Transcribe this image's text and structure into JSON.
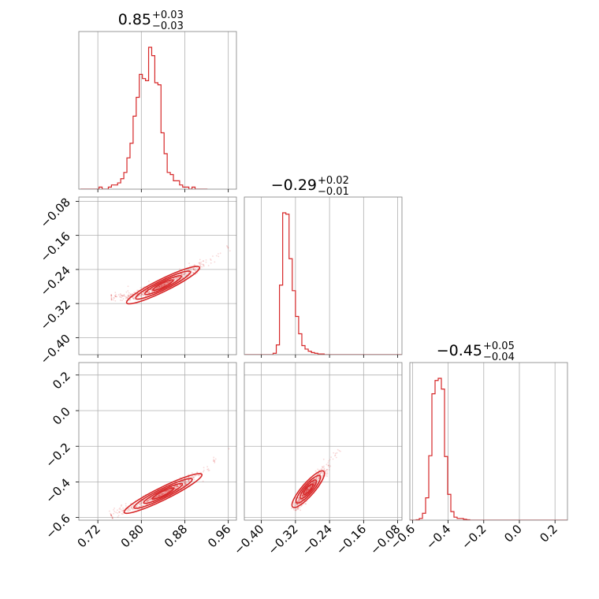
{
  "chart_data": {
    "type": "corner",
    "color": "#d62728",
    "grid": true,
    "parameters": [
      {
        "title": {
          "value": "0.85",
          "plus": "+0.03",
          "minus": "−0.03"
        },
        "range": [
          0.685,
          0.975
        ],
        "ticks": [
          0.72,
          0.8,
          0.88,
          0.96
        ],
        "tick_labels": [
          "0.72",
          "0.80",
          "0.88",
          "0.96"
        ]
      },
      {
        "title": {
          "value": "−0.29",
          "plus": "+0.02",
          "minus": "−0.01"
        },
        "range": [
          -0.44,
          -0.07
        ],
        "ticks": [
          -0.4,
          -0.32,
          -0.24,
          -0.16,
          -0.08
        ],
        "tick_labels": [
          "−0.40",
          "−0.32",
          "−0.24",
          "−0.16",
          "−0.08"
        ]
      },
      {
        "title": {
          "value": "−0.45",
          "plus": "+0.05",
          "minus": "−0.04"
        },
        "range": [
          -0.615,
          0.27
        ],
        "ticks": [
          -0.6,
          -0.4,
          -0.2,
          0.0,
          0.2
        ],
        "tick_labels": [
          "−0.6",
          "−0.4",
          "−0.2",
          "0.0",
          "0.2"
        ]
      }
    ],
    "histograms": [
      {
        "edges_start": 0.688,
        "bin_width": 0.0057,
        "counts": [
          0,
          0,
          0,
          0,
          0,
          0,
          1,
          0,
          0,
          1,
          2,
          2,
          3,
          5,
          8,
          15,
          22,
          35,
          44,
          55,
          53,
          52,
          68,
          64,
          51,
          50,
          27,
          17,
          8,
          7,
          4,
          4,
          2,
          1,
          1,
          0,
          1,
          0,
          0,
          0,
          0
        ]
      },
      {
        "edges_start": -0.44,
        "bin_width": 0.0075,
        "counts": [
          0,
          0,
          0,
          0,
          0,
          0,
          0,
          0,
          0,
          2,
          14,
          100,
          204,
          202,
          138,
          92,
          55,
          30,
          13,
          8,
          5,
          3,
          2,
          1,
          1,
          0,
          0,
          0,
          0,
          0,
          0,
          0,
          0,
          0,
          0,
          0,
          0,
          0,
          0,
          0,
          0,
          0,
          0,
          0,
          0,
          0,
          0,
          0,
          0,
          0
        ]
      },
      {
        "edges_start": -0.615,
        "bin_width": 0.0177,
        "counts": [
          0,
          0,
          1,
          4,
          16,
          52,
          150,
          294,
          325,
          330,
          305,
          148,
          60,
          20,
          7,
          4,
          4,
          2,
          1,
          0,
          0,
          0,
          0,
          0,
          0,
          0,
          0,
          0,
          0,
          0,
          0,
          0,
          0,
          0,
          0,
          0,
          0,
          0,
          0,
          0,
          0,
          0,
          0,
          0,
          0,
          0,
          0,
          0,
          0,
          0
        ]
      }
    ],
    "pairs": [
      {
        "x_param": 0,
        "y_param": 1,
        "ridge": [
          [
            0.745,
            -0.305
          ],
          [
            0.79,
            -0.302
          ],
          [
            0.83,
            -0.283
          ],
          [
            0.87,
            -0.258
          ],
          [
            0.91,
            -0.229
          ],
          [
            0.96,
            -0.19
          ]
        ]
      },
      {
        "x_param": 0,
        "y_param": 2,
        "ridge": [
          [
            0.745,
            -0.59
          ],
          [
            0.79,
            -0.53
          ],
          [
            0.83,
            -0.48
          ],
          [
            0.87,
            -0.42
          ],
          [
            0.91,
            -0.35
          ],
          [
            0.96,
            -0.21
          ]
        ]
      },
      {
        "x_param": 1,
        "y_param": 2,
        "ridge": [
          [
            -0.32,
            -0.56
          ],
          [
            -0.31,
            -0.51
          ],
          [
            -0.295,
            -0.455
          ],
          [
            -0.275,
            -0.4
          ],
          [
            -0.25,
            -0.33
          ],
          [
            -0.22,
            -0.22
          ]
        ]
      }
    ]
  }
}
